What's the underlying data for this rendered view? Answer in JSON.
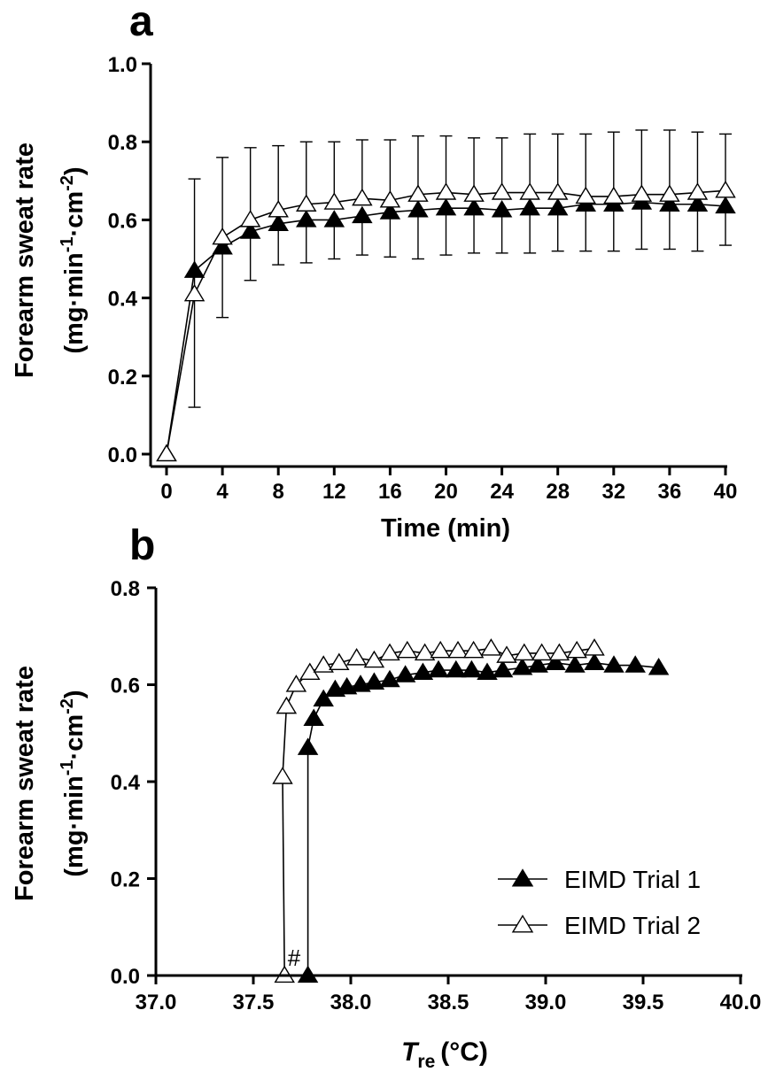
{
  "chart_data": [
    {
      "panel": "a",
      "type": "line",
      "xlabel": "Time (min)",
      "ylabel_line1": "Forearm sweat rate",
      "ylabel_units": {
        "open": "(mg·min",
        "exp1": "-1",
        "mid": "·cm",
        "exp2": "-2",
        "close": ")"
      },
      "xlim": [
        0,
        40
      ],
      "ylim": [
        0,
        1.0
      ],
      "x_ticks": [
        0,
        4,
        8,
        12,
        16,
        20,
        24,
        28,
        32,
        36,
        40
      ],
      "x_tick_labels": [
        "0",
        "4",
        "8",
        "12",
        "16",
        "20",
        "24",
        "28",
        "32",
        "36",
        "40"
      ],
      "y_ticks": [
        0,
        0.2,
        0.4,
        0.6,
        0.8,
        1.0
      ],
      "y_tick_labels": [
        "0.0",
        "0.2",
        "0.4",
        "0.6",
        "0.8",
        "1.0"
      ],
      "x": [
        0,
        2,
        4,
        6,
        8,
        10,
        12,
        14,
        16,
        18,
        20,
        22,
        24,
        26,
        28,
        30,
        32,
        34,
        36,
        38,
        40
      ],
      "series": [
        {
          "name": "EIMD Trial 1",
          "marker": "filled-triangle",
          "values": [
            0.0,
            0.47,
            0.53,
            0.57,
            0.59,
            0.6,
            0.6,
            0.61,
            0.62,
            0.625,
            0.63,
            0.63,
            0.625,
            0.63,
            0.63,
            0.64,
            0.64,
            0.645,
            0.64,
            0.64,
            0.635
          ],
          "error_lower": [
            null,
            null,
            0.35,
            0.445,
            0.485,
            0.49,
            0.5,
            0.51,
            0.505,
            0.5,
            0.51,
            0.515,
            0.515,
            0.515,
            0.52,
            0.52,
            0.52,
            0.525,
            0.525,
            0.52,
            0.535
          ]
        },
        {
          "name": "EIMD Trial 2",
          "marker": "open-triangle",
          "values": [
            0.0,
            0.41,
            0.555,
            0.6,
            0.625,
            0.64,
            0.645,
            0.655,
            0.65,
            0.665,
            0.67,
            0.665,
            0.67,
            0.67,
            0.67,
            0.66,
            0.66,
            0.665,
            0.665,
            0.67,
            0.675
          ],
          "error_lower": [
            null,
            0.12,
            null,
            null,
            null,
            null,
            null,
            null,
            null,
            null,
            null,
            null,
            null,
            null,
            null,
            null,
            null,
            null,
            null,
            null,
            null
          ],
          "error_upper": [
            null,
            0.705,
            0.76,
            0.785,
            0.79,
            0.8,
            0.8,
            0.805,
            0.805,
            0.815,
            0.815,
            0.81,
            0.81,
            0.82,
            0.82,
            0.82,
            0.825,
            0.83,
            0.83,
            0.825,
            0.82
          ]
        }
      ]
    },
    {
      "panel": "b",
      "type": "line",
      "xlabel_main": "T",
      "xlabel_sub": "re",
      "xlabel_units": "(°C)",
      "ylabel_line1": "Forearm sweat rate",
      "ylabel_units": {
        "open": "(mg·min",
        "exp1": "-1",
        "mid": "·cm",
        "exp2": "-2",
        "close": ")"
      },
      "xlim": [
        37.0,
        40.0
      ],
      "ylim": [
        0,
        0.8
      ],
      "x_ticks": [
        37.0,
        37.5,
        38.0,
        38.5,
        39.0,
        39.5,
        40.0
      ],
      "x_tick_labels": [
        "37.0",
        "37.5",
        "38.0",
        "38.5",
        "39.0",
        "39.5",
        "40.0"
      ],
      "y_ticks": [
        0,
        0.2,
        0.4,
        0.6,
        0.8
      ],
      "y_tick_labels": [
        "0.0",
        "0.2",
        "0.4",
        "0.6",
        "0.8"
      ],
      "annotation": "#",
      "legend_position": "bottom-right",
      "series": [
        {
          "name": "EIMD Trial 1",
          "marker": "filled-triangle",
          "points": [
            [
              37.78,
              0.0
            ],
            [
              37.78,
              0.47
            ],
            [
              37.81,
              0.53
            ],
            [
              37.86,
              0.57
            ],
            [
              37.92,
              0.59
            ],
            [
              37.98,
              0.595
            ],
            [
              38.05,
              0.6
            ],
            [
              38.12,
              0.605
            ],
            [
              38.2,
              0.61
            ],
            [
              38.28,
              0.62
            ],
            [
              38.37,
              0.625
            ],
            [
              38.45,
              0.63
            ],
            [
              38.54,
              0.63
            ],
            [
              38.62,
              0.63
            ],
            [
              38.7,
              0.625
            ],
            [
              38.78,
              0.63
            ],
            [
              38.88,
              0.635
            ],
            [
              38.96,
              0.64
            ],
            [
              39.05,
              0.645
            ],
            [
              39.15,
              0.64
            ],
            [
              39.25,
              0.645
            ],
            [
              39.35,
              0.64
            ],
            [
              39.46,
              0.64
            ],
            [
              39.58,
              0.635
            ]
          ]
        },
        {
          "name": "EIMD Trial 2",
          "marker": "open-triangle",
          "points": [
            [
              37.66,
              0.0
            ],
            [
              37.65,
              0.41
            ],
            [
              37.67,
              0.555
            ],
            [
              37.72,
              0.6
            ],
            [
              37.79,
              0.625
            ],
            [
              37.86,
              0.64
            ],
            [
              37.94,
              0.645
            ],
            [
              38.03,
              0.655
            ],
            [
              38.12,
              0.65
            ],
            [
              38.2,
              0.665
            ],
            [
              38.29,
              0.67
            ],
            [
              38.38,
              0.665
            ],
            [
              38.46,
              0.67
            ],
            [
              38.55,
              0.67
            ],
            [
              38.63,
              0.67
            ],
            [
              38.72,
              0.675
            ],
            [
              38.8,
              0.66
            ],
            [
              38.89,
              0.665
            ],
            [
              38.98,
              0.665
            ],
            [
              39.07,
              0.665
            ],
            [
              39.16,
              0.67
            ],
            [
              39.25,
              0.675
            ]
          ]
        }
      ]
    }
  ]
}
